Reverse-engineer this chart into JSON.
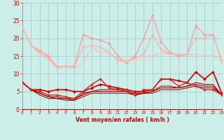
{
  "x": [
    0,
    1,
    2,
    3,
    4,
    5,
    6,
    7,
    8,
    9,
    10,
    11,
    12,
    13,
    14,
    15,
    16,
    17,
    18,
    19,
    20,
    21,
    22,
    23
  ],
  "series": [
    {
      "name": "rafales_top",
      "y": [
        23,
        18,
        16.5,
        15,
        12,
        12,
        12,
        21,
        20,
        19.5,
        18.5,
        15,
        13,
        15,
        20,
        26.5,
        19,
        16,
        15,
        15.5,
        23.5,
        21,
        21,
        13.5
      ],
      "color": "#ff9999",
      "lw": 0.9,
      "marker": "D",
      "ms": 1.8
    },
    {
      "name": "rafales_mid",
      "y": [
        23,
        18,
        16,
        14.5,
        12,
        12,
        12,
        17.5,
        18,
        17.5,
        16,
        14,
        13.5,
        14.5,
        15.5,
        21,
        17,
        15.5,
        15.5,
        15.5,
        20,
        20,
        21,
        13.5
      ],
      "color": "#ffaaaa",
      "lw": 0.8,
      "marker": "D",
      "ms": 1.5
    },
    {
      "name": "rafales_low1",
      "y": [
        23,
        18,
        15.5,
        14,
        11.5,
        12,
        11.5,
        13,
        17.5,
        16,
        16,
        13.5,
        13.5,
        14,
        15,
        15,
        16,
        15.5,
        15.5,
        15.5,
        15.5,
        15,
        15,
        13.5
      ],
      "color": "#ffbbbb",
      "lw": 0.7,
      "marker": "D",
      "ms": 1.3
    },
    {
      "name": "rafales_low2",
      "y": [
        23,
        18,
        15.5,
        14,
        11.5,
        12,
        11.5,
        13,
        17.5,
        16,
        16,
        13.5,
        14.5,
        14,
        14,
        15,
        15.5,
        15.5,
        15.5,
        15.5,
        15.5,
        15.5,
        15,
        13.5
      ],
      "color": "#ffcccc",
      "lw": 0.6,
      "marker": null,
      "ms": 0
    },
    {
      "name": "vent_top",
      "y": [
        7.5,
        5.5,
        5.5,
        5,
        5.5,
        5.5,
        5,
        5,
        6,
        7,
        6.5,
        6,
        5.5,
        5,
        5,
        5.5,
        8.5,
        8.5,
        8,
        7.5,
        10.5,
        8.5,
        10.5,
        4.5
      ],
      "color": "#cc0000",
      "lw": 1.2,
      "marker": "D",
      "ms": 2.0
    },
    {
      "name": "vent_mid",
      "y": [
        7.5,
        5.5,
        5,
        4,
        4,
        3.5,
        3,
        5,
        7,
        8.5,
        6,
        5.5,
        5.5,
        4,
        5.5,
        5.5,
        8.5,
        8.5,
        6.5,
        7.5,
        6.5,
        5.5,
        5.5,
        4
      ],
      "color": "#dd2222",
      "lw": 1.0,
      "marker": "D",
      "ms": 1.8
    },
    {
      "name": "vent_low1",
      "y": [
        7.5,
        5.5,
        4.5,
        3.5,
        3.5,
        3,
        2.5,
        4.5,
        5,
        5.5,
        5.5,
        5.5,
        5,
        4,
        4.5,
        5,
        6.5,
        6.5,
        6,
        6.5,
        7.5,
        7,
        7,
        4
      ],
      "color": "#bb0000",
      "lw": 0.8,
      "marker": null,
      "ms": 0
    },
    {
      "name": "vent_low2",
      "y": [
        7.5,
        5.5,
        4.5,
        3.5,
        3,
        3,
        3,
        4,
        5,
        5,
        5,
        5,
        5,
        4.5,
        4.5,
        5,
        6,
        6,
        6,
        6.5,
        7,
        6.5,
        6.5,
        4
      ],
      "color": "#990000",
      "lw": 0.8,
      "marker": null,
      "ms": 0
    },
    {
      "name": "vent_base",
      "y": [
        7.5,
        5.5,
        4,
        3,
        3,
        2.5,
        2.5,
        3.5,
        4.5,
        4.5,
        4.5,
        4.5,
        4.5,
        4,
        4.5,
        4.5,
        5.5,
        5.5,
        5.5,
        6,
        6.5,
        6,
        6,
        4
      ],
      "color": "#880000",
      "lw": 0.7,
      "marker": null,
      "ms": 0
    }
  ],
  "xlim": [
    0,
    23
  ],
  "ylim": [
    0,
    30
  ],
  "yticks": [
    0,
    5,
    10,
    15,
    20,
    25,
    30
  ],
  "xticks": [
    0,
    1,
    2,
    3,
    4,
    5,
    6,
    7,
    8,
    9,
    10,
    11,
    12,
    13,
    14,
    15,
    16,
    17,
    18,
    19,
    20,
    21,
    22,
    23
  ],
  "xlabel": "Vent moyen/en rafales ( km/h )",
  "bg_color": "#cceee8",
  "grid_color": "#aacccc",
  "tick_color": "#cc0000",
  "label_color": "#cc0000"
}
